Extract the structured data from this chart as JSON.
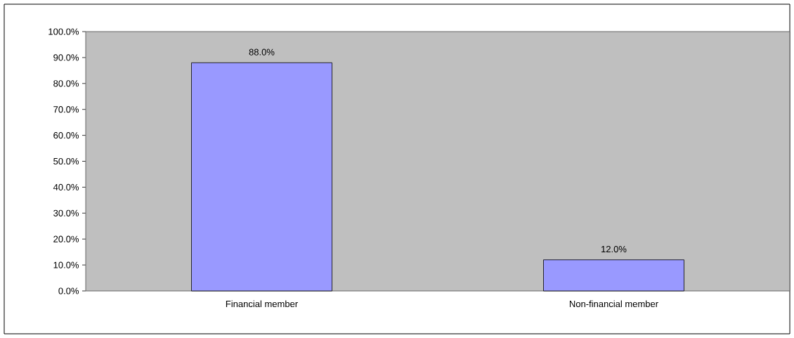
{
  "chart_data": {
    "type": "bar",
    "categories": [
      "Financial member",
      "Non-financial member"
    ],
    "values": [
      88.0,
      12.0
    ],
    "color": "#9999ff",
    "value_labels": [
      "88.0%",
      "12.0%"
    ],
    "ylim": [
      0,
      100
    ],
    "yticks": [
      {
        "value": 0,
        "label": "0.0%"
      },
      {
        "value": 10,
        "label": "10.0%"
      },
      {
        "value": 20,
        "label": "20.0%"
      },
      {
        "value": 30,
        "label": "30.0%"
      },
      {
        "value": 40,
        "label": "40.0%"
      },
      {
        "value": 50,
        "label": "50.0%"
      },
      {
        "value": 60,
        "label": "60.0%"
      },
      {
        "value": 70,
        "label": "70.0%"
      },
      {
        "value": 80,
        "label": "80.0%"
      },
      {
        "value": 90,
        "label": "90.0%"
      },
      {
        "value": 100,
        "label": "100.0%"
      }
    ]
  }
}
